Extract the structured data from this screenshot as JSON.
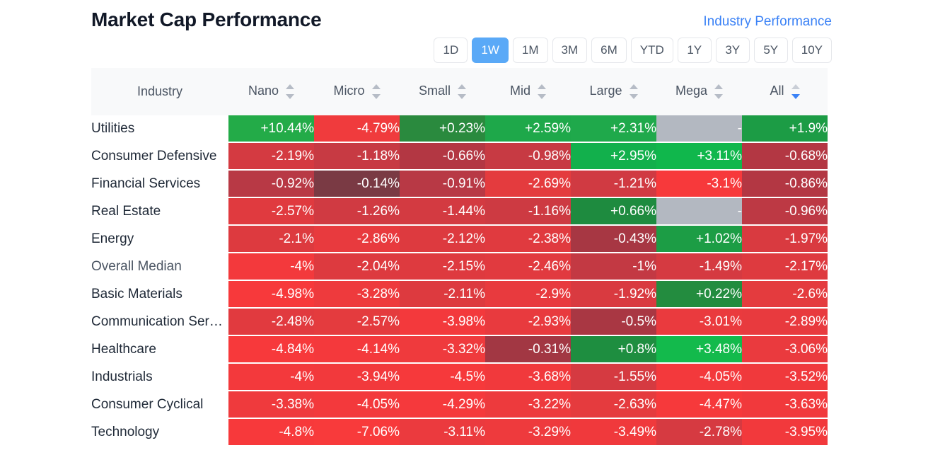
{
  "title": "Market Cap Performance",
  "industry_link": "Industry Performance",
  "periods": [
    "1D",
    "1W",
    "1M",
    "3M",
    "6M",
    "YTD",
    "1Y",
    "3Y",
    "5Y",
    "10Y"
  ],
  "active_period": "1W",
  "columns": {
    "industry": "Industry",
    "caps": [
      "Nano",
      "Micro",
      "Small",
      "Mid",
      "Large",
      "Mega",
      "All"
    ],
    "sorted_column": "All"
  },
  "rows": [
    {
      "name": "Utilities",
      "values": [
        "+10.44%",
        "-4.79%",
        "+0.23%",
        "+2.59%",
        "+2.31%",
        "-",
        "+1.9%"
      ],
      "colors": [
        "#23ab48",
        "#f03b3d",
        "#2a8a3e",
        "#1ea84a",
        "#1fa94b",
        "#b3b8c1",
        "#1c9c45"
      ]
    },
    {
      "name": "Consumer Defensive",
      "values": [
        "-2.19%",
        "-1.18%",
        "-0.66%",
        "-0.98%",
        "+2.95%",
        "+3.11%",
        "-0.68%"
      ],
      "colors": [
        "#d43a41",
        "#c73a43",
        "#b33743",
        "#c73a43",
        "#12b04c",
        "#10b74c",
        "#b33743"
      ]
    },
    {
      "name": "Financial Services",
      "values": [
        "-0.92%",
        "-0.14%",
        "-0.91%",
        "-2.69%",
        "-1.21%",
        "-3.1%",
        "-0.86%"
      ],
      "colors": [
        "#b83945",
        "#7a3a44",
        "#b83945",
        "#e43b3e",
        "#d03a42",
        "#f7393b",
        "#b33743"
      ]
    },
    {
      "name": "Real Estate",
      "values": [
        "-2.57%",
        "-1.26%",
        "-1.44%",
        "-1.16%",
        "+0.66%",
        "-",
        "-0.96%"
      ],
      "colors": [
        "#e03a3f",
        "#d03a42",
        "#d33a41",
        "#cd3a42",
        "#1e8b3f",
        "#b3b8c1",
        "#bd3944"
      ]
    },
    {
      "name": "Energy",
      "values": [
        "-2.1%",
        "-2.86%",
        "-2.12%",
        "-2.38%",
        "-0.43%",
        "+1.02%",
        "-1.97%"
      ],
      "colors": [
        "#dd3a3f",
        "#e83a3e",
        "#dd3a3f",
        "#e03a3f",
        "#a73743",
        "#1c9d45",
        "#d93a40"
      ]
    },
    {
      "name": "Overall Median",
      "muted": true,
      "values": [
        "-4%",
        "-2.04%",
        "-2.15%",
        "-2.46%",
        "-1%",
        "-1.49%",
        "-2.17%"
      ],
      "colors": [
        "#f3393c",
        "#dd3a3f",
        "#de3a3f",
        "#e13a3f",
        "#c33943",
        "#d53a41",
        "#de3a3f"
      ]
    },
    {
      "name": "Basic Materials",
      "values": [
        "-4.98%",
        "-3.28%",
        "-2.11%",
        "-2.9%",
        "-1.92%",
        "+0.22%",
        "-2.6%"
      ],
      "colors": [
        "#f7393b",
        "#ee3a3d",
        "#dd3a3f",
        "#e83a3e",
        "#d93a40",
        "#238c3f",
        "#e43b3e"
      ]
    },
    {
      "name": "Communication Services",
      "values": [
        "-2.48%",
        "-2.57%",
        "-3.98%",
        "-2.93%",
        "-0.5%",
        "-3.01%",
        "-2.89%"
      ],
      "colors": [
        "#e13a3f",
        "#e43b3e",
        "#f3393c",
        "#e83a3e",
        "#a93743",
        "#ea3a3e",
        "#e83a3e"
      ]
    },
    {
      "name": "Healthcare",
      "values": [
        "-4.84%",
        "-4.14%",
        "-3.32%",
        "-0.31%",
        "+0.8%",
        "+3.48%",
        "-3.06%"
      ],
      "colors": [
        "#f7393b",
        "#f4393c",
        "#ef3a3d",
        "#a23743",
        "#1e8e40",
        "#13ba4c",
        "#ea3a3e"
      ]
    },
    {
      "name": "Industrials",
      "values": [
        "-4%",
        "-3.94%",
        "-4.5%",
        "-3.68%",
        "-1.55%",
        "-4.05%",
        "-3.52%"
      ],
      "colors": [
        "#f3393c",
        "#f2393c",
        "#f6393b",
        "#f1393c",
        "#d53a41",
        "#f3393c",
        "#f0393c"
      ]
    },
    {
      "name": "Consumer Cyclical",
      "values": [
        "-3.38%",
        "-4.05%",
        "-4.29%",
        "-3.22%",
        "-2.63%",
        "-4.47%",
        "-3.63%"
      ],
      "colors": [
        "#ef3a3d",
        "#f3393c",
        "#f5393c",
        "#ed3a3d",
        "#e53b3e",
        "#f6393b",
        "#f1393c"
      ]
    },
    {
      "name": "Technology",
      "values": [
        "-4.8%",
        "-7.06%",
        "-3.11%",
        "-3.29%",
        "-3.49%",
        "-2.78%",
        "-3.95%"
      ],
      "colors": [
        "#f7393b",
        "#f83a3b",
        "#eb3a3e",
        "#ee3a3d",
        "#f0393c",
        "#d63a41",
        "#f2393c"
      ]
    }
  ]
}
